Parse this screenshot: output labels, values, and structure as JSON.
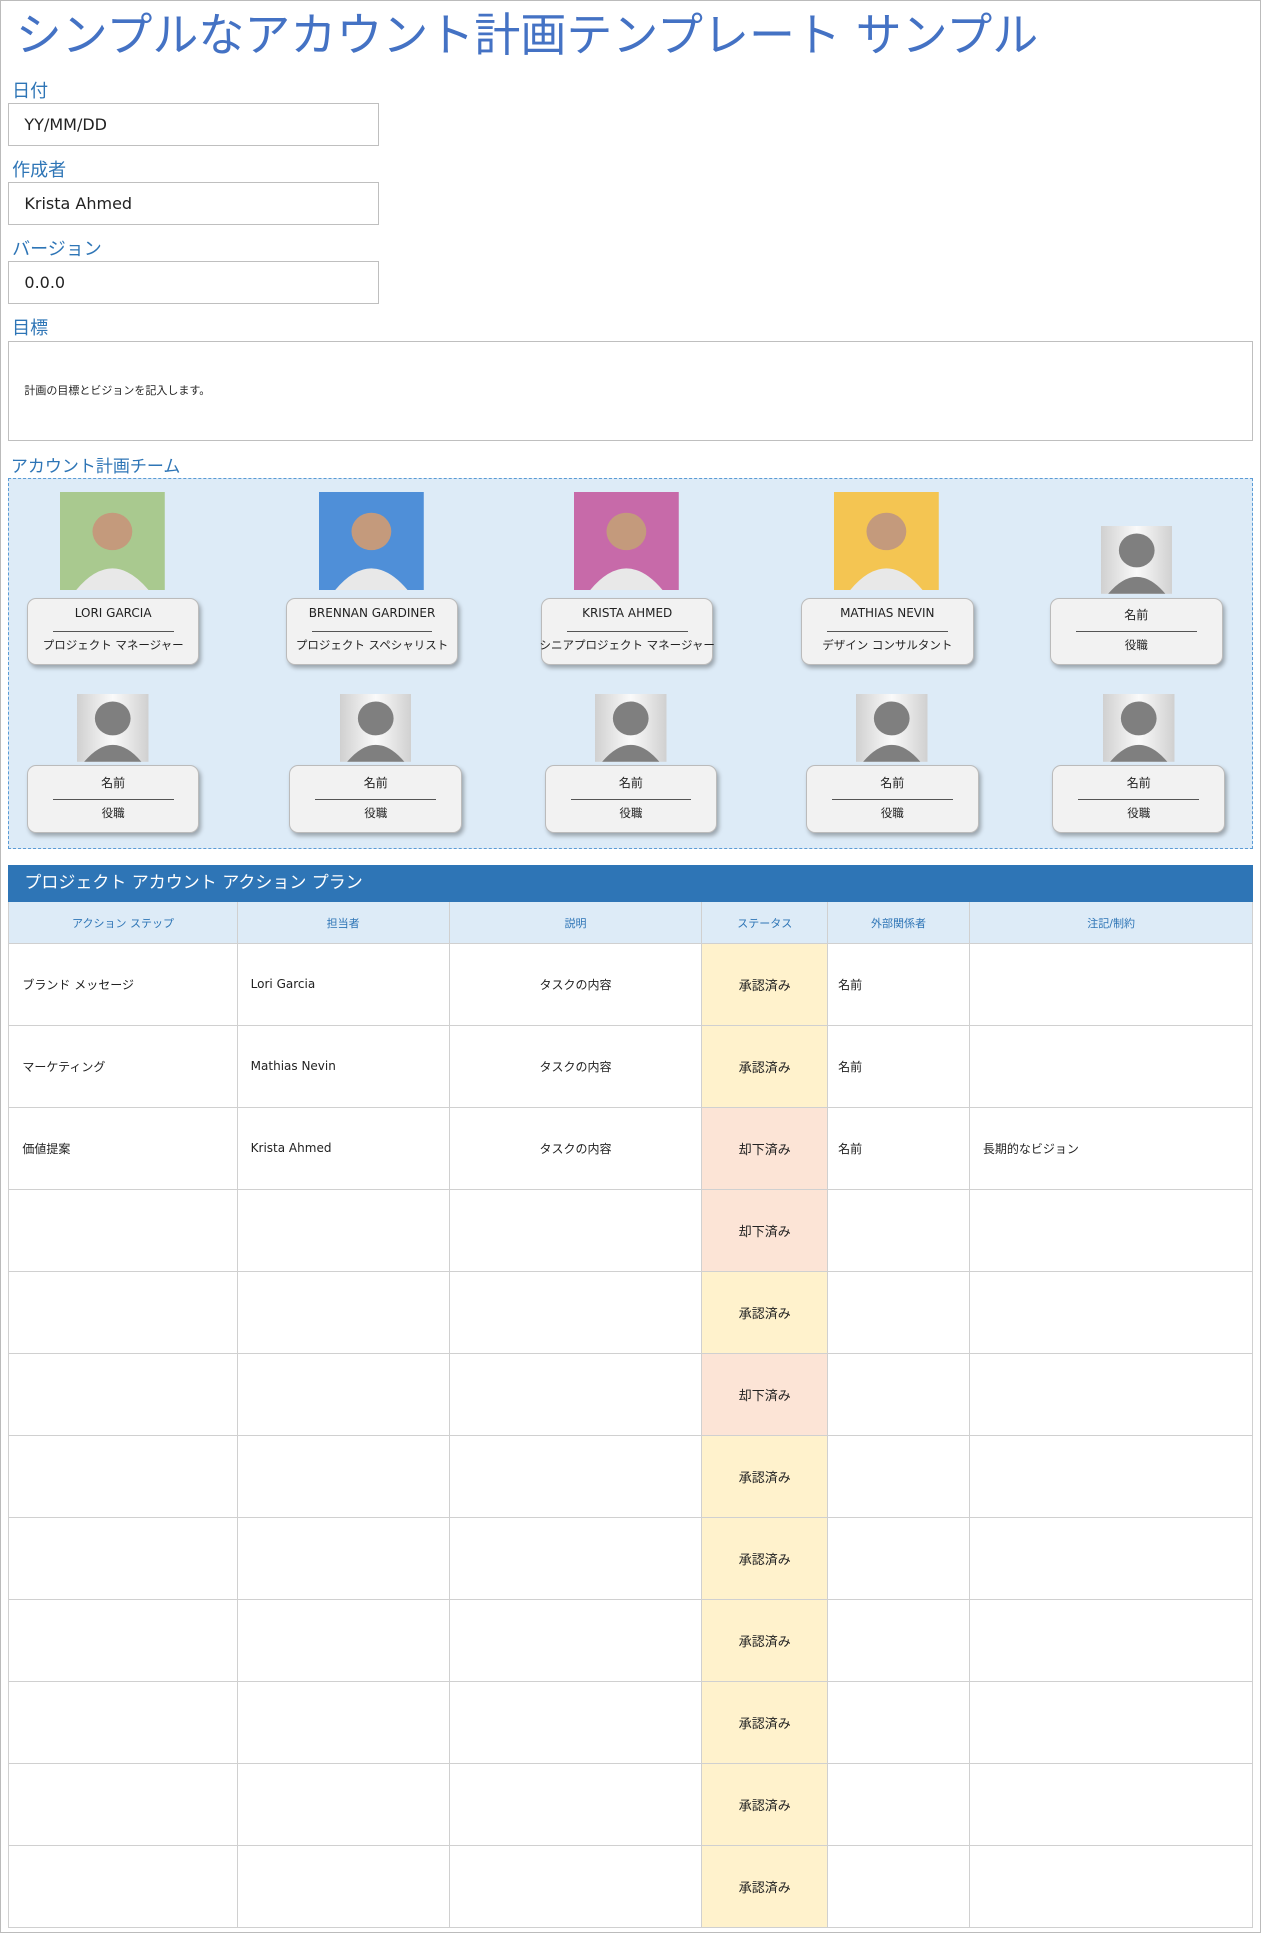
{
  "header": {
    "title": "シンプルなアカウント計画テンプレート サンプル"
  },
  "fields": [
    {
      "label": "日付",
      "value": "YY/MM/DD"
    },
    {
      "label": "作成者",
      "value": "Krista Ahmed"
    },
    {
      "label": "バージョン",
      "value": "0.0.0"
    }
  ],
  "goal": {
    "label": "目標",
    "text": "計画の目標とビジョンを記入します。"
  },
  "team": {
    "title": "アカウント計画チーム",
    "members": [
      {
        "name": "LORI GARCIA",
        "role": "プロジェクト マネージャー",
        "photo_color": "#a9c98f"
      },
      {
        "name": "BRENNAN GARDINER",
        "role": "プロジェクト スペシャリスト",
        "photo_color": "#4f8fd8"
      },
      {
        "name": "KRISTA AHMED",
        "role": "シニアプロジェクト マネージャー",
        "photo_color": "#c76aa9"
      },
      {
        "name": "MATHIAS NEVIN",
        "role": "デザイン コンサルタント",
        "photo_color": "#f4c552"
      },
      {
        "name": "名前",
        "role": "役職"
      },
      {
        "name": "名前",
        "role": "役職"
      },
      {
        "name": "名前",
        "role": "役職"
      },
      {
        "name": "名前",
        "role": "役職"
      },
      {
        "name": "名前",
        "role": "役職"
      },
      {
        "name": "名前",
        "role": "役職"
      }
    ]
  },
  "table": {
    "title": "プロジェクト アカウント アクション プラン",
    "columns": {
      "step": "アクション ステップ",
      "owner": "担当者",
      "desc": "説明",
      "status": "ステータス",
      "contact": "外部関係者",
      "notes": "注記/制約"
    },
    "rows": [
      {
        "step": "ブランド メッセージ",
        "owner": "Lori Garcia",
        "desc": "タスクの内容",
        "status": "承認済み",
        "contact": "名前",
        "status_color": "#fff2cc"
      },
      {
        "step": "マーケティング",
        "owner": "Mathias Nevin",
        "desc": "タスクの内容",
        "status": "承認済み",
        "contact": "名前",
        "status_color": "#fff2cc"
      },
      {
        "step": "価値提案",
        "owner": "Krista Ahmed",
        "desc": "タスクの内容",
        "status": "却下済み",
        "contact": "名前",
        "notes": "長期的なビジョン",
        "status_color": "#fce4d6"
      },
      {
        "status": "却下済み",
        "status_color": "#fce4d6"
      },
      {
        "status": "承認済み",
        "status_color": "#fff2cc"
      },
      {
        "status": "却下済み",
        "status_color": "#fce4d6"
      },
      {
        "status": "承認済み",
        "status_color": "#fff2cc"
      },
      {
        "status": "承認済み",
        "status_color": "#fff2cc"
      },
      {
        "status": "承認済み",
        "status_color": "#fff2cc"
      },
      {
        "status": "承認済み",
        "status_color": "#fff2cc"
      },
      {
        "status": "承認済み",
        "status_color": "#fff2cc"
      },
      {
        "status": "承認済み",
        "status_color": "#fff2cc"
      }
    ]
  }
}
